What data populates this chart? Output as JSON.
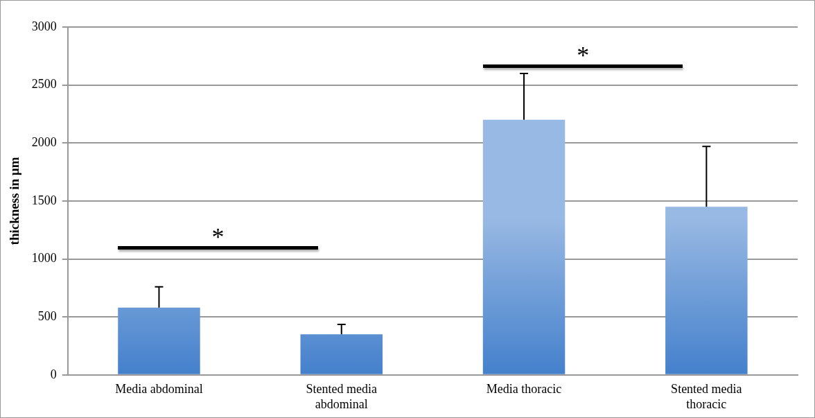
{
  "chart_data": {
    "type": "bar",
    "ylabel": "thickness in µm",
    "categories": [
      "Media abdominal",
      "Stented media abdominal",
      "Media thoracic",
      "Stented media thoracic"
    ],
    "values": [
      580,
      350,
      2200,
      1450
    ],
    "errors": [
      180,
      85,
      400,
      520
    ],
    "color": "#4480cc",
    "ylim": [
      0,
      3000
    ],
    "yticks": [
      0,
      500,
      1000,
      1500,
      2000,
      2500,
      3000
    ],
    "grid": "y",
    "annotations": [
      "*",
      "*"
    ]
  }
}
